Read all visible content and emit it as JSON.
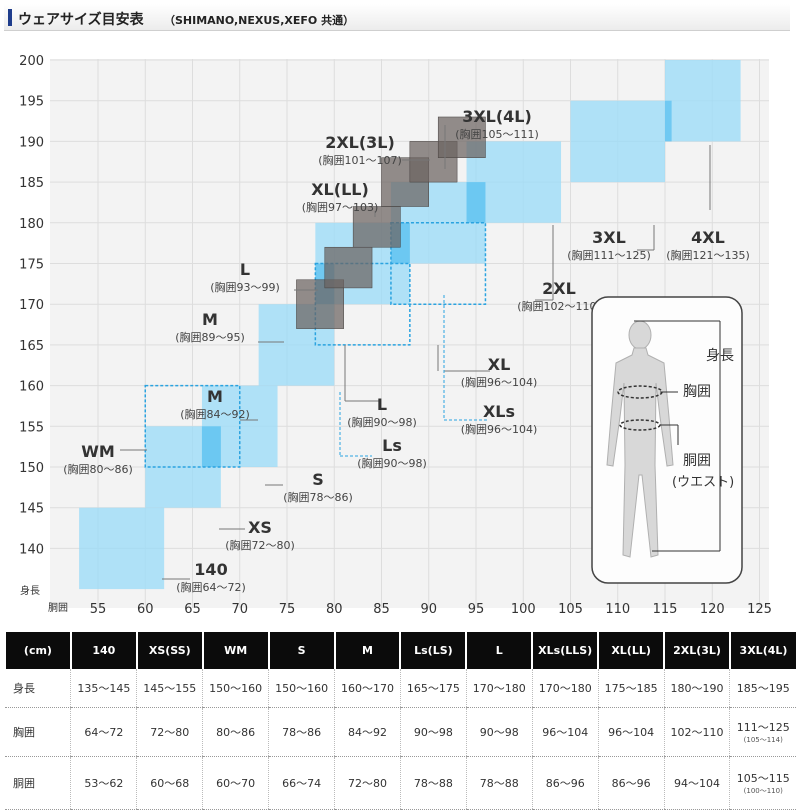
{
  "header": {
    "title": "ウェアサイズ目安表",
    "subtitle": "（SHIMANO,NEXUS,XEFO 共通）"
  },
  "chart_data": {
    "type": "rect-range",
    "xlabel": "胴囲",
    "ylabel": "身長",
    "xlim": [
      50,
      125
    ],
    "ylim": [
      135,
      200
    ],
    "xticks": [
      55,
      60,
      65,
      70,
      75,
      80,
      85,
      90,
      95,
      100,
      105,
      110,
      115,
      120,
      125
    ],
    "yticks": [
      140,
      145,
      150,
      155,
      160,
      165,
      170,
      175,
      180,
      185,
      190,
      195,
      200
    ],
    "boxes_blue": [
      {
        "size": "140",
        "waist": [
          53,
          62
        ],
        "height": [
          135,
          145
        ]
      },
      {
        "size": "XS",
        "waist": [
          60,
          68
        ],
        "height": [
          145,
          155
        ]
      },
      {
        "size": "S",
        "waist": [
          66,
          74
        ],
        "height": [
          150,
          160
        ]
      },
      {
        "size": "M",
        "waist": [
          72,
          80
        ],
        "height": [
          160,
          170
        ]
      },
      {
        "size": "L",
        "waist": [
          78,
          88
        ],
        "height": [
          170,
          180
        ]
      },
      {
        "size": "XL",
        "waist": [
          86,
          96
        ],
        "height": [
          175,
          185
        ]
      },
      {
        "size": "2XL",
        "waist": [
          94,
          104
        ],
        "height": [
          180,
          190
        ]
      },
      {
        "size": "3XL",
        "waist": [
          105,
          115
        ],
        "height": [
          185,
          195
        ]
      },
      {
        "size": "4XL",
        "waist": [
          115,
          123
        ],
        "height": [
          190,
          200
        ]
      }
    ],
    "boxes_dashed": [
      {
        "size": "WM",
        "waist": [
          60,
          70
        ],
        "height": [
          150,
          160
        ]
      },
      {
        "size": "Ls",
        "waist": [
          78,
          88
        ],
        "height": [
          165,
          175
        ]
      },
      {
        "size": "XLs",
        "waist": [
          86,
          96
        ],
        "height": [
          170,
          180
        ]
      }
    ],
    "boxes_gray": [
      {
        "size": "M",
        "waist": [
          76,
          81
        ],
        "height": [
          167,
          173
        ]
      },
      {
        "size": "L",
        "waist": [
          79,
          84
        ],
        "height": [
          172,
          177
        ]
      },
      {
        "size": "XL",
        "waist": [
          82,
          87
        ],
        "height": [
          177,
          182
        ]
      },
      {
        "size": "XL(LL)",
        "waist": [
          85,
          90
        ],
        "height": [
          182,
          188
        ]
      },
      {
        "size": "2XL(3L)",
        "waist": [
          88,
          93
        ],
        "height": [
          185,
          190
        ]
      },
      {
        "size": "3XL(4L)",
        "waist": [
          91,
          96
        ],
        "height": [
          188,
          193
        ]
      }
    ],
    "labels": [
      {
        "size": "140",
        "chest": "(胸囲64～72)"
      },
      {
        "size": "XS",
        "chest": "(胸囲72～80)"
      },
      {
        "size": "S",
        "chest": "(胸囲78～86)"
      },
      {
        "size": "WM",
        "chest": "(胸囲80～86)"
      },
      {
        "size": "M",
        "chest": "(胸囲84～92)"
      },
      {
        "size": "M",
        "chest": "(胸囲89～95)"
      },
      {
        "size": "L",
        "chest": "(胸囲93～99)"
      },
      {
        "size": "XL(LL)",
        "chest": "(胸囲97～103)"
      },
      {
        "size": "2XL(3L)",
        "chest": "(胸囲101～107)"
      },
      {
        "size": "3XL(4L)",
        "chest": "(胸囲105～111)"
      },
      {
        "size": "L",
        "chest": "(胸囲90～98)"
      },
      {
        "size": "Ls",
        "chest": "(胸囲90～98)"
      },
      {
        "size": "XL",
        "chest": "(胸囲96～104)"
      },
      {
        "size": "XLs",
        "chest": "(胸囲96～104)"
      },
      {
        "size": "2XL",
        "chest": "(胸囲102～110)"
      },
      {
        "size": "3XL",
        "chest": "(胸囲111～125)"
      },
      {
        "size": "4XL",
        "chest": "(胸囲121～135)"
      }
    ],
    "figure_labels": [
      "身長",
      "胸囲",
      "胴囲",
      "(ウエスト)"
    ],
    "colors": {
      "blue": "#9edcf7",
      "blue_dark": "#5bc0f0",
      "gray": "#6b6260",
      "dashed": "#2aa3e0",
      "bg": "#f3f3f3"
    }
  },
  "table": {
    "unit": "(cm)",
    "headers": [
      "140",
      "XS(SS)",
      "WM",
      "S",
      "M",
      "Ls(LS)",
      "L",
      "XLs(LLS)",
      "XL(LL)",
      "2XL(3L)",
      "3XL(4L)"
    ],
    "rows": [
      {
        "label": "身長",
        "values": [
          "135～145",
          "145～155",
          "150～160",
          "150～160",
          "160～170",
          "165～175",
          "170～180",
          "170～180",
          "175～185",
          "180～190",
          "185～195"
        ]
      },
      {
        "label": "胸囲",
        "values": [
          "64～72",
          "72～80",
          "80～86",
          "78～86",
          "84～92",
          "90～98",
          "90～98",
          "96～104",
          "96～104",
          "102～110",
          "111～125"
        ],
        "note": "(105～114)"
      },
      {
        "label": "胴囲",
        "values": [
          "53～62",
          "60～68",
          "60～70",
          "66～74",
          "72～80",
          "78～88",
          "78～88",
          "86～96",
          "86～96",
          "94～104",
          "105～115"
        ],
        "note": "(100～110)"
      }
    ]
  }
}
